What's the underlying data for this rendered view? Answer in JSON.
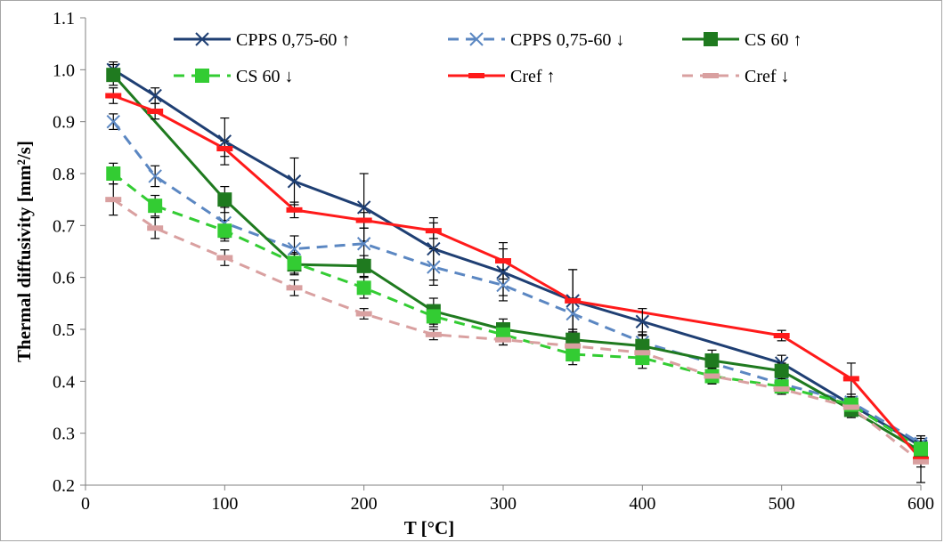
{
  "chart_data": {
    "type": "line",
    "xlabel": "T [°C]",
    "ylabel": "Thermal diffusivity [mm²/s]",
    "xlim": [
      0,
      600
    ],
    "ylim": [
      0.2,
      1.1
    ],
    "x_ticks": [
      0,
      100,
      200,
      300,
      400,
      500,
      600
    ],
    "y_ticks": [
      0.2,
      0.3,
      0.4,
      0.5,
      0.6,
      0.7,
      0.8,
      0.9,
      1.0,
      1.1
    ],
    "y_tick_labels": [
      "0.2",
      "0.3",
      "0.4",
      "0.5",
      "0.6",
      "0.7",
      "0.8",
      "0.9",
      "1.0",
      "1.1"
    ],
    "grid": false,
    "legend_position": "top",
    "series": [
      {
        "name": "CPPS 0,75-60 ↑",
        "color": "#1f3f73",
        "dash": "solid",
        "marker": "x",
        "x": [
          20,
          50,
          100,
          150,
          200,
          250,
          300,
          350,
          400,
          500,
          550,
          600
        ],
        "y": [
          1.0,
          0.95,
          0.862,
          0.785,
          0.735,
          0.655,
          0.61,
          0.555,
          0.515,
          0.435,
          0.355,
          0.275
        ],
        "err": [
          0.015,
          0.015,
          0.045,
          0.045,
          0.065,
          0.06,
          0.045,
          0.06,
          0.025,
          0.015,
          0.015,
          0.015
        ]
      },
      {
        "name": "CPPS 0,75-60 ↓",
        "color": "#5b87c2",
        "dash": "dashed",
        "marker": "x",
        "x": [
          20,
          50,
          100,
          150,
          200,
          250,
          300,
          350,
          400,
          500,
          550,
          600
        ],
        "y": [
          0.9,
          0.795,
          0.705,
          0.655,
          0.665,
          0.62,
          0.585,
          0.53,
          0.475,
          0.395,
          0.36,
          0.28
        ],
        "err": [
          0.015,
          0.02,
          0.03,
          0.025,
          0.03,
          0.035,
          0.03,
          0.03,
          0.02,
          0.015,
          0.015,
          0.015
        ]
      },
      {
        "name": "CS 60 ↑",
        "color": "#1f7a1f",
        "dash": "solid",
        "marker": "square",
        "x": [
          20,
          100,
          150,
          200,
          250,
          300,
          350,
          400,
          450,
          500,
          550,
          600
        ],
        "y": [
          0.99,
          0.75,
          0.625,
          0.622,
          0.535,
          0.5,
          0.48,
          0.468,
          0.44,
          0.42,
          0.345,
          0.265
        ],
        "err": [
          0.02,
          0.025,
          0.02,
          0.02,
          0.025,
          0.02,
          0.02,
          0.02,
          0.02,
          0.015,
          0.015,
          0.015
        ]
      },
      {
        "name": "CS 60 ↓",
        "color": "#33cc33",
        "dash": "dashed",
        "marker": "square",
        "x": [
          20,
          50,
          100,
          150,
          200,
          250,
          300,
          350,
          400,
          450,
          500,
          550,
          600
        ],
        "y": [
          0.8,
          0.738,
          0.69,
          0.628,
          0.58,
          0.525,
          0.49,
          0.452,
          0.445,
          0.41,
          0.39,
          0.355,
          0.27
        ],
        "err": [
          0.02,
          0.02,
          0.02,
          0.02,
          0.02,
          0.02,
          0.02,
          0.02,
          0.02,
          0.015,
          0.015,
          0.015,
          0.015
        ]
      },
      {
        "name": "Cref ↑",
        "color": "#ff1a1a",
        "dash": "solid",
        "marker": "dash",
        "x": [
          20,
          50,
          100,
          150,
          200,
          250,
          300,
          350,
          500,
          550,
          600
        ],
        "y": [
          0.95,
          0.92,
          0.848,
          0.73,
          0.71,
          0.69,
          0.632,
          0.555,
          0.488,
          0.405,
          0.25
        ],
        "err": [
          0.015,
          0.015,
          0.015,
          0.015,
          0.015,
          0.015,
          0.035,
          0.06,
          0.01,
          0.03,
          0.045
        ]
      },
      {
        "name": "Cref ↓",
        "color": "#d9a0a0",
        "dash": "dashed",
        "marker": "dash",
        "x": [
          20,
          50,
          100,
          150,
          200,
          250,
          300,
          350,
          400,
          450,
          500,
          550,
          600
        ],
        "y": [
          0.75,
          0.695,
          0.638,
          0.58,
          0.53,
          0.49,
          0.48,
          0.468,
          0.455,
          0.41,
          0.385,
          0.35,
          0.245
        ],
        "err": [
          0.03,
          0.02,
          0.015,
          0.015,
          0.01,
          0.01,
          0.01,
          0.015,
          0.015,
          0.015,
          0.01,
          0.01,
          0.01
        ]
      }
    ]
  }
}
